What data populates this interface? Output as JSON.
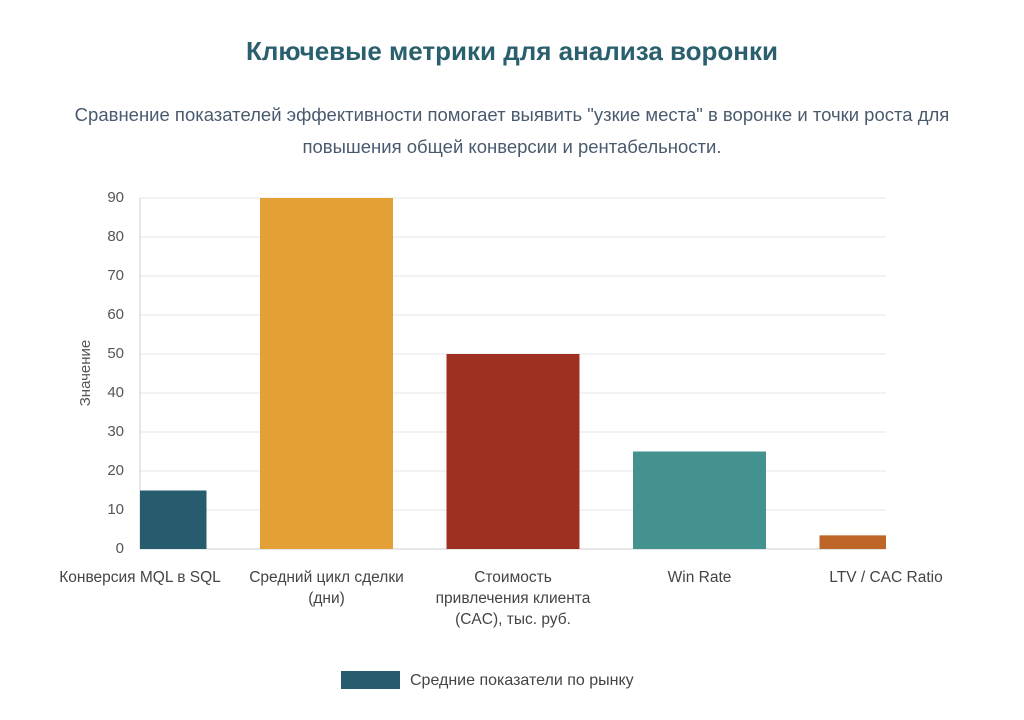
{
  "chart_data": {
    "type": "bar",
    "title": "Ключевые метрики для анализа воронки",
    "subtitle": "Сравнение показателей эффективности помогает выявить \"узкие места\" в воронке и точки роста для повышения общей конверсии и рентабельности.",
    "y_label": "Значение",
    "categories": [
      "Конверсия MQL в SQL",
      "Средний цикл сделки (дни)",
      "Стоимость привлечения клиента (CAC), тыс. руб.",
      "Win Rate",
      "LTV / CAC Ratio"
    ],
    "series": [
      {
        "name": "Средние показатели по рынку",
        "color": "#265c6e",
        "colors": [
          "#265c6e",
          "#e3a037",
          "#9e3022",
          "#44928f",
          "#bd6627"
        ],
        "values": [
          15,
          90,
          50,
          25,
          3.5
        ]
      }
    ],
    "ylim": [
      0,
      90
    ],
    "yticks": [
      0,
      10,
      20,
      30,
      40,
      50,
      60,
      70,
      80,
      90
    ],
    "grid": true,
    "legend": "bottom"
  }
}
